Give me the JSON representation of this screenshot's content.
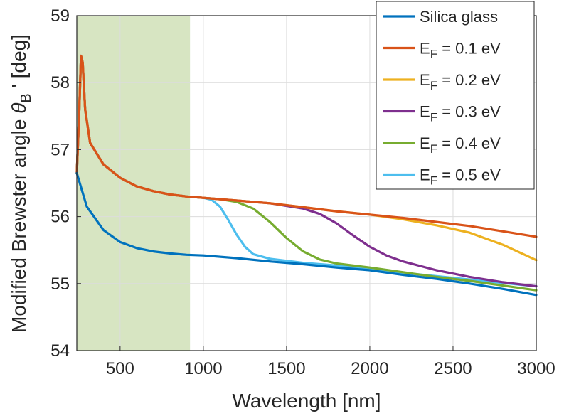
{
  "chart_data": {
    "type": "line",
    "xlabel": "Wavelength [nm]",
    "ylabel": {
      "main": "Modified Brewster angle ",
      "symbol": "θ",
      "subscript": "B",
      "suffix": " ' [deg]"
    },
    "xlim": [
      240,
      3000
    ],
    "ylim": [
      54,
      59
    ],
    "xticks": [
      500,
      1000,
      1500,
      2000,
      2500,
      3000
    ],
    "yticks": [
      54,
      55,
      56,
      57,
      58,
      59
    ],
    "grid": true,
    "legend_position": "top-right",
    "shaded_region": {
      "x": [
        240,
        920
      ],
      "color": "#c9dcae"
    },
    "series": [
      {
        "label": {
          "main": "Silica glass",
          "sub": "",
          "suffix": ""
        },
        "color": "#0072BD",
        "points": [
          [
            240,
            56.65
          ],
          [
            300,
            56.15
          ],
          [
            400,
            55.8
          ],
          [
            500,
            55.62
          ],
          [
            600,
            55.53
          ],
          [
            700,
            55.48
          ],
          [
            800,
            55.45
          ],
          [
            900,
            55.43
          ],
          [
            1000,
            55.42
          ],
          [
            1200,
            55.38
          ],
          [
            1400,
            55.33
          ],
          [
            1600,
            55.29
          ],
          [
            1800,
            55.24
          ],
          [
            2000,
            55.2
          ],
          [
            2200,
            55.13
          ],
          [
            2400,
            55.07
          ],
          [
            2600,
            55.0
          ],
          [
            2800,
            54.92
          ],
          [
            3000,
            54.83
          ]
        ]
      },
      {
        "label": {
          "main": "E",
          "sub": "F",
          "suffix": " = 0.1 eV"
        },
        "color": "#D95319",
        "points": [
          [
            240,
            56.65
          ],
          [
            255,
            57.6
          ],
          [
            265,
            58.4
          ],
          [
            275,
            58.3
          ],
          [
            290,
            57.6
          ],
          [
            320,
            57.1
          ],
          [
            400,
            56.78
          ],
          [
            500,
            56.58
          ],
          [
            600,
            56.45
          ],
          [
            700,
            56.38
          ],
          [
            800,
            56.33
          ],
          [
            900,
            56.3
          ],
          [
            1000,
            56.28
          ],
          [
            1200,
            56.24
          ],
          [
            1400,
            56.2
          ],
          [
            1600,
            56.14
          ],
          [
            1800,
            56.08
          ],
          [
            2000,
            56.03
          ],
          [
            2200,
            55.98
          ],
          [
            2400,
            55.92
          ],
          [
            2600,
            55.86
          ],
          [
            2800,
            55.78
          ],
          [
            3000,
            55.7
          ]
        ]
      },
      {
        "label": {
          "main": "E",
          "sub": "F",
          "suffix": " = 0.2 eV"
        },
        "color": "#EDB120",
        "points": [
          [
            240,
            56.65
          ],
          [
            255,
            57.6
          ],
          [
            265,
            58.4
          ],
          [
            275,
            58.3
          ],
          [
            290,
            57.6
          ],
          [
            320,
            57.1
          ],
          [
            400,
            56.78
          ],
          [
            500,
            56.58
          ],
          [
            600,
            56.45
          ],
          [
            700,
            56.38
          ],
          [
            800,
            56.33
          ],
          [
            900,
            56.3
          ],
          [
            1000,
            56.28
          ],
          [
            1200,
            56.24
          ],
          [
            1400,
            56.2
          ],
          [
            1600,
            56.14
          ],
          [
            1800,
            56.08
          ],
          [
            2000,
            56.03
          ],
          [
            2200,
            55.96
          ],
          [
            2400,
            55.87
          ],
          [
            2600,
            55.76
          ],
          [
            2800,
            55.58
          ],
          [
            3000,
            55.35
          ]
        ]
      },
      {
        "label": {
          "main": "E",
          "sub": "F",
          "suffix": " = 0.3 eV"
        },
        "color": "#7E2F8E",
        "points": [
          [
            240,
            56.65
          ],
          [
            255,
            57.6
          ],
          [
            265,
            58.4
          ],
          [
            275,
            58.3
          ],
          [
            290,
            57.6
          ],
          [
            320,
            57.1
          ],
          [
            400,
            56.78
          ],
          [
            500,
            56.58
          ],
          [
            600,
            56.45
          ],
          [
            700,
            56.38
          ],
          [
            800,
            56.33
          ],
          [
            900,
            56.3
          ],
          [
            1000,
            56.28
          ],
          [
            1200,
            56.24
          ],
          [
            1400,
            56.2
          ],
          [
            1600,
            56.12
          ],
          [
            1700,
            56.04
          ],
          [
            1800,
            55.9
          ],
          [
            1900,
            55.72
          ],
          [
            2000,
            55.55
          ],
          [
            2100,
            55.42
          ],
          [
            2200,
            55.33
          ],
          [
            2400,
            55.2
          ],
          [
            2600,
            55.1
          ],
          [
            2800,
            55.02
          ],
          [
            3000,
            54.96
          ]
        ]
      },
      {
        "label": {
          "main": "E",
          "sub": "F",
          "suffix": " = 0.4 eV"
        },
        "color": "#77AC30",
        "points": [
          [
            240,
            56.65
          ],
          [
            255,
            57.6
          ],
          [
            265,
            58.4
          ],
          [
            275,
            58.3
          ],
          [
            290,
            57.6
          ],
          [
            320,
            57.1
          ],
          [
            400,
            56.78
          ],
          [
            500,
            56.58
          ],
          [
            600,
            56.45
          ],
          [
            700,
            56.38
          ],
          [
            800,
            56.33
          ],
          [
            900,
            56.3
          ],
          [
            1000,
            56.28
          ],
          [
            1100,
            56.26
          ],
          [
            1200,
            56.22
          ],
          [
            1300,
            56.12
          ],
          [
            1400,
            55.92
          ],
          [
            1500,
            55.68
          ],
          [
            1600,
            55.48
          ],
          [
            1700,
            55.36
          ],
          [
            1800,
            55.3
          ],
          [
            2000,
            55.24
          ],
          [
            2200,
            55.17
          ],
          [
            2400,
            55.1
          ],
          [
            2600,
            55.04
          ],
          [
            2800,
            54.97
          ],
          [
            3000,
            54.9
          ]
        ]
      },
      {
        "label": {
          "main": "E",
          "sub": "F",
          "suffix": " = 0.5 eV"
        },
        "color": "#4DBEEE",
        "points": [
          [
            240,
            56.65
          ],
          [
            255,
            57.6
          ],
          [
            265,
            58.4
          ],
          [
            275,
            58.3
          ],
          [
            290,
            57.6
          ],
          [
            320,
            57.1
          ],
          [
            400,
            56.78
          ],
          [
            500,
            56.58
          ],
          [
            600,
            56.45
          ],
          [
            700,
            56.38
          ],
          [
            800,
            56.33
          ],
          [
            900,
            56.3
          ],
          [
            1000,
            56.28
          ],
          [
            1050,
            56.25
          ],
          [
            1100,
            56.15
          ],
          [
            1150,
            55.95
          ],
          [
            1200,
            55.73
          ],
          [
            1250,
            55.55
          ],
          [
            1300,
            55.44
          ],
          [
            1400,
            55.37
          ],
          [
            1600,
            55.31
          ],
          [
            1800,
            55.27
          ],
          [
            2000,
            55.22
          ],
          [
            2200,
            55.16
          ],
          [
            2400,
            55.11
          ],
          [
            2600,
            55.06
          ],
          [
            2800,
            55.01
          ],
          [
            3000,
            54.96
          ]
        ]
      }
    ]
  }
}
